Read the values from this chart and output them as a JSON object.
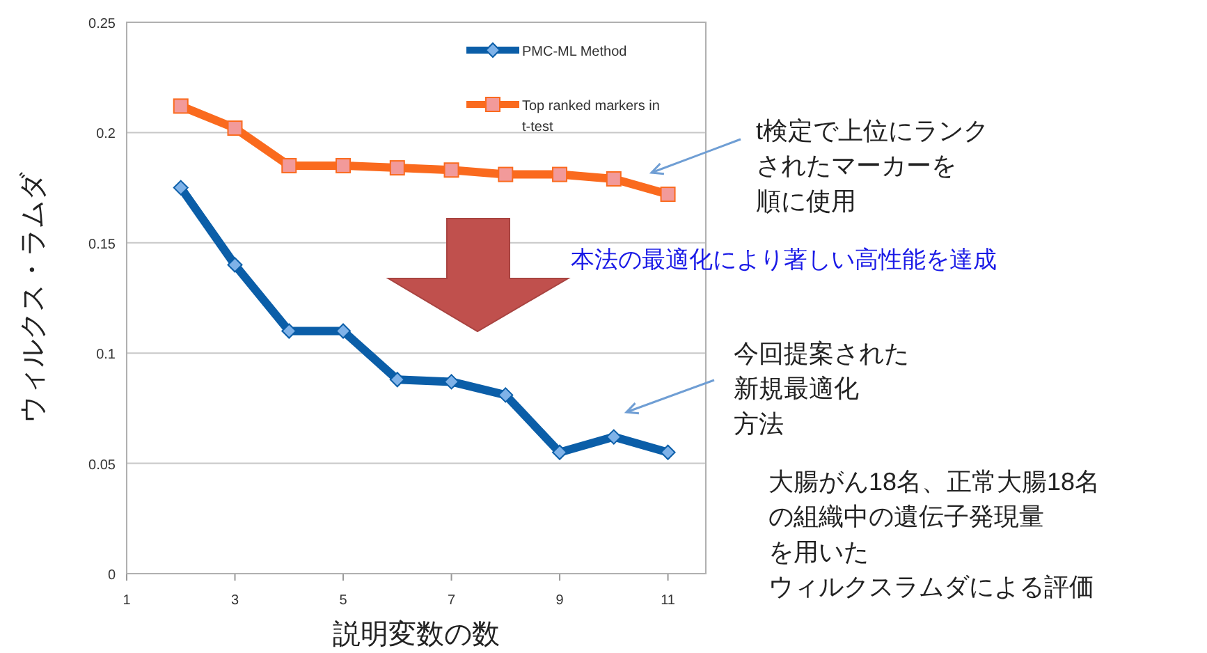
{
  "chart_data": {
    "type": "line",
    "xlabel": "説明変数の数",
    "ylabel": "ウィルクス・ラムダ",
    "x": [
      2,
      3,
      4,
      5,
      6,
      7,
      8,
      9,
      10,
      11
    ],
    "xlim": [
      1,
      11.7
    ],
    "xticks": [
      1,
      3,
      5,
      7,
      9,
      11
    ],
    "ylim": [
      0,
      0.25
    ],
    "yticks": [
      0,
      0.05,
      0.1,
      0.15,
      0.2,
      0.25
    ],
    "grid": "y",
    "legend": "top right",
    "series": [
      {
        "name": "PMC-ML Method",
        "color": "#0b5ea8",
        "marker": "diamond",
        "values": [
          0.175,
          0.14,
          0.11,
          0.11,
          0.088,
          0.087,
          0.081,
          0.055,
          0.062,
          0.055
        ]
      },
      {
        "name": "Top ranked markers in t-test",
        "color": "#fa6a1e",
        "marker": "square",
        "values": [
          0.212,
          0.202,
          0.185,
          0.185,
          0.184,
          0.183,
          0.181,
          0.181,
          0.179,
          0.172
        ]
      }
    ],
    "annotations": [
      "t検定で上位にランクされたマーカーを順に使用",
      "本法の最適化により著しい高性能を達成",
      "今回提案された新規最適化方法",
      "大腸がん18名、正常大腸18名の組織中の遺伝子発現量を用いたウィルクスラムダによる評価"
    ]
  }
}
